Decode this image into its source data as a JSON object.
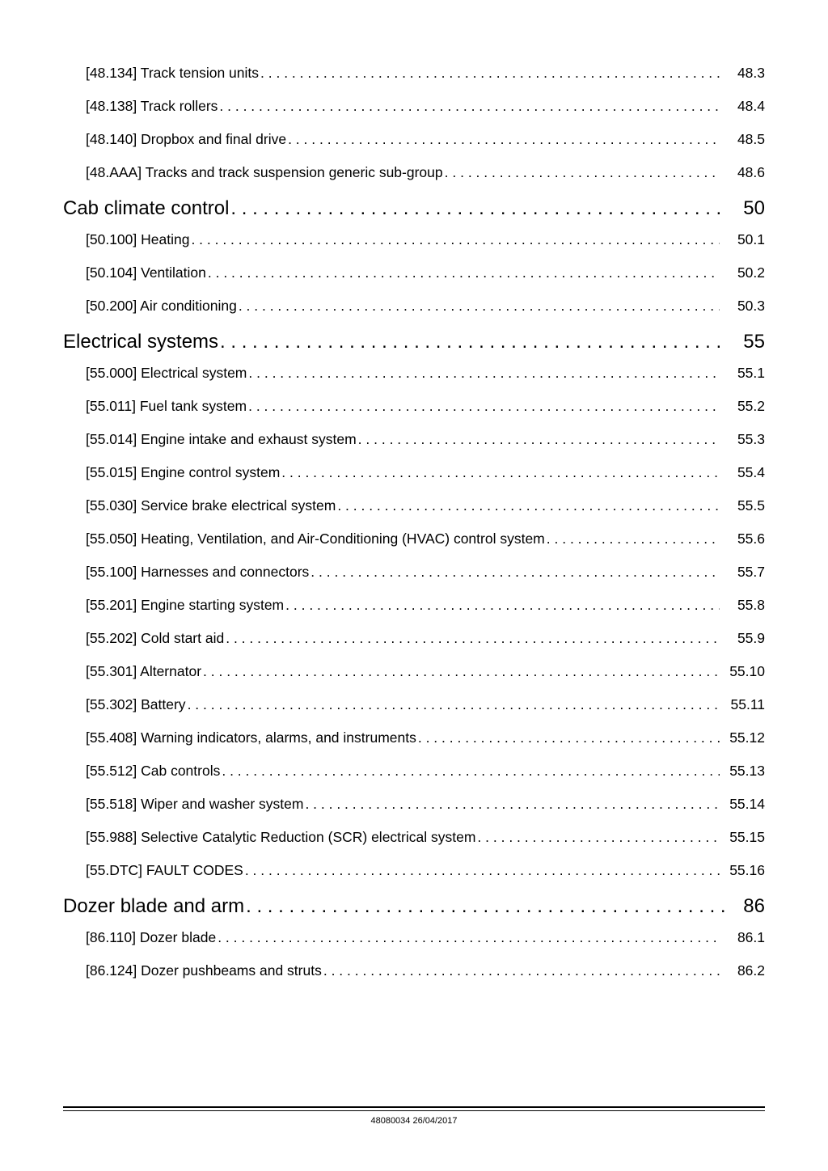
{
  "toc": [
    {
      "level": "item",
      "label": "[48.134] Track tension units",
      "page": "48.3"
    },
    {
      "level": "item",
      "label": "[48.138] Track rollers",
      "page": "48.4"
    },
    {
      "level": "item",
      "label": "[48.140] Dropbox and final drive",
      "page": "48.5"
    },
    {
      "level": "item",
      "label": "[48.AAA] Tracks and track suspension generic sub-group",
      "page": "48.6"
    },
    {
      "level": "section",
      "label": "Cab climate control",
      "page": "50"
    },
    {
      "level": "item",
      "label": "[50.100] Heating",
      "page": "50.1"
    },
    {
      "level": "item",
      "label": "[50.104] Ventilation",
      "page": "50.2"
    },
    {
      "level": "item",
      "label": "[50.200] Air conditioning",
      "page": "50.3"
    },
    {
      "level": "section",
      "label": "Electrical systems",
      "page": "55"
    },
    {
      "level": "item",
      "label": "[55.000] Electrical system",
      "page": "55.1"
    },
    {
      "level": "item",
      "label": "[55.011] Fuel tank system",
      "page": "55.2"
    },
    {
      "level": "item",
      "label": "[55.014] Engine intake and exhaust system",
      "page": "55.3"
    },
    {
      "level": "item",
      "label": "[55.015] Engine control system",
      "page": "55.4"
    },
    {
      "level": "item",
      "label": "[55.030] Service brake electrical system",
      "page": "55.5"
    },
    {
      "level": "item",
      "label": "[55.050] Heating, Ventilation, and Air-Conditioning (HVAC) control system",
      "page": "55.6"
    },
    {
      "level": "item",
      "label": "[55.100] Harnesses and connectors",
      "page": "55.7"
    },
    {
      "level": "item",
      "label": "[55.201] Engine starting system",
      "page": "55.8"
    },
    {
      "level": "item",
      "label": "[55.202] Cold start aid",
      "page": "55.9"
    },
    {
      "level": "item",
      "label": "[55.301] Alternator",
      "page": "55.10"
    },
    {
      "level": "item",
      "label": "[55.302] Battery",
      "page": "55.11"
    },
    {
      "level": "item",
      "label": "[55.408] Warning indicators, alarms, and instruments",
      "page": "55.12"
    },
    {
      "level": "item",
      "label": "[55.512] Cab controls",
      "page": "55.13"
    },
    {
      "level": "item",
      "label": "[55.518] Wiper and washer system",
      "page": "55.14"
    },
    {
      "level": "item",
      "label": "[55.988] Selective Catalytic Reduction (SCR) electrical system",
      "page": "55.15"
    },
    {
      "level": "item",
      "label": "[55.DTC] FAULT CODES",
      "page": "55.16"
    },
    {
      "level": "section",
      "label": "Dozer blade and arm",
      "page": "86"
    },
    {
      "level": "item",
      "label": "[86.110] Dozer blade",
      "page": "86.1"
    },
    {
      "level": "item",
      "label": "[86.124] Dozer pushbeams and struts",
      "page": "86.2"
    }
  ],
  "footer": "48080034 26/04/2017"
}
